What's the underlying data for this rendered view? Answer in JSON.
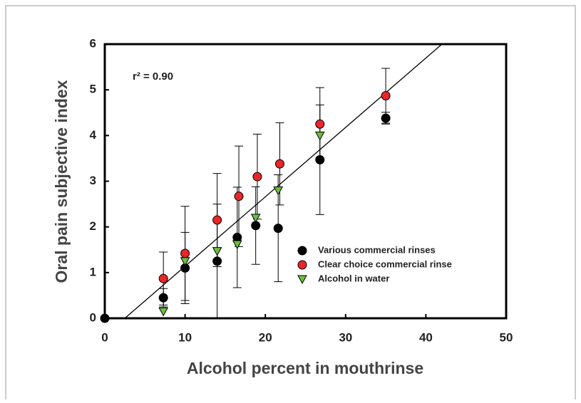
{
  "chart_data": {
    "type": "scatter",
    "x_label": "Alcohol percent in mouthrinse",
    "y_label": "Oral pain subjective index",
    "annotation": "r² = 0.90",
    "xlim": [
      0,
      50
    ],
    "xticks": [
      0,
      10,
      20,
      30,
      40,
      50
    ],
    "ylim": [
      0,
      6
    ],
    "yticks": [
      0,
      1,
      2,
      3,
      4,
      5,
      6
    ],
    "fit_line": {
      "x": [
        2.5,
        42
      ],
      "y": [
        0,
        6
      ],
      "color": "#000000"
    },
    "series": [
      {
        "name": "Various commercial rinses",
        "color": "#000000",
        "marker": "circle",
        "x": [
          0,
          7.3,
          10,
          14,
          16.5,
          18.8,
          21.6,
          26.8,
          35
        ],
        "values": [
          0,
          0.45,
          1.1,
          1.25,
          1.77,
          2.03,
          1.97,
          3.47,
          4.38
        ],
        "errors": [
          null,
          0.2,
          0.78,
          1.25,
          1.1,
          0.85,
          1.17,
          1.2,
          0.13
        ]
      },
      {
        "name": "Clear choice commercial rinse",
        "color": "#e8262b",
        "marker": "circle",
        "x": [
          7.3,
          10,
          14,
          16.7,
          19,
          21.8,
          26.8,
          35
        ],
        "values": [
          0.87,
          1.42,
          2.15,
          2.67,
          3.1,
          3.38,
          4.25,
          4.87
        ],
        "errors": [
          0.58,
          1.03,
          1.02,
          1.1,
          0.93,
          0.9,
          0.8,
          0.6
        ]
      },
      {
        "name": "Alcohol in water",
        "color": "#6cbf3f",
        "marker": "triangle",
        "x": [
          7.3,
          10,
          14,
          16.5,
          18.8,
          21.6,
          26.8
        ],
        "values": [
          0.15,
          1.25,
          1.47,
          1.62,
          2.2,
          2.8,
          4.0
        ],
        "errors": [
          null,
          null,
          null,
          null,
          null,
          null,
          null
        ]
      }
    ]
  }
}
